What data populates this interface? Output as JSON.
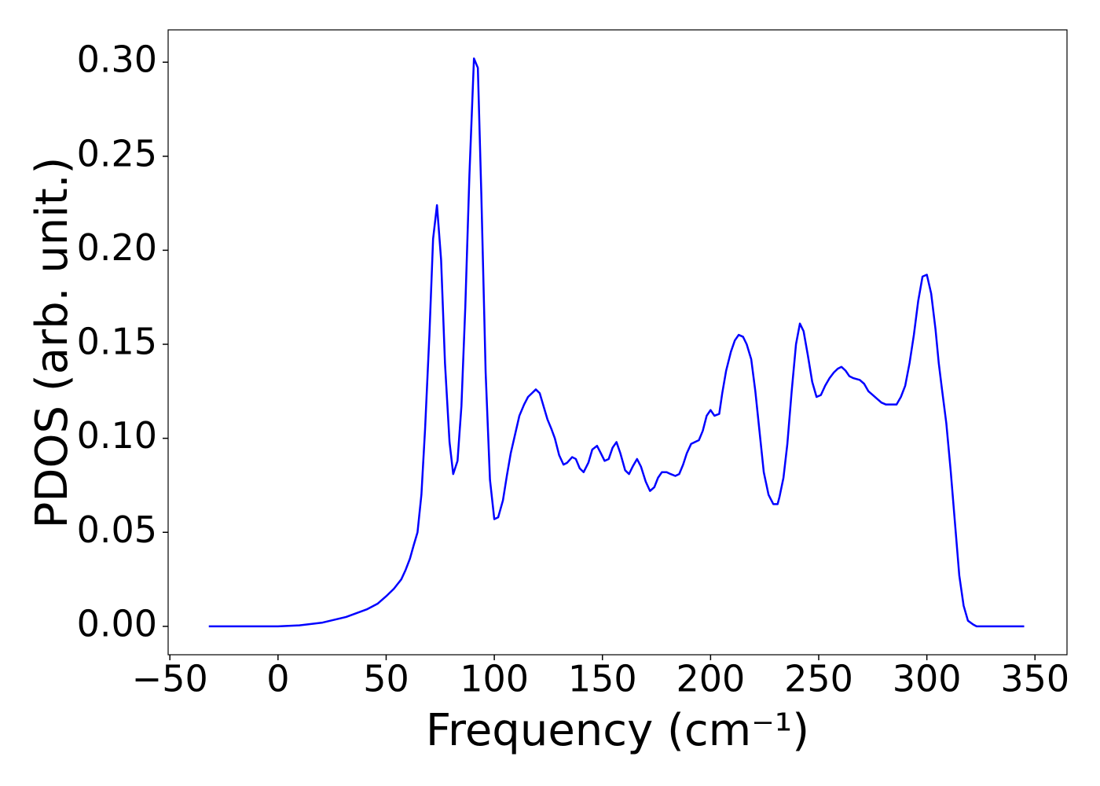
{
  "chart_data": {
    "type": "line",
    "xlabel": "Frequency (cm⁻¹)",
    "ylabel": "PDOS (arb. unit.)",
    "xlim": [
      -50.8,
      364.8
    ],
    "ylim": [
      -0.0151,
      0.3172
    ],
    "xticks": [
      {
        "value": -50,
        "label": "−50"
      },
      0,
      50,
      100,
      150,
      200,
      250,
      300,
      350
    ],
    "yticks": [
      {
        "value": 0,
        "label": "0.00"
      },
      {
        "value": 0.05,
        "label": "0.05"
      },
      {
        "value": 0.1,
        "label": "0.10"
      },
      {
        "value": 0.15,
        "label": "0.15"
      },
      {
        "value": 0.2,
        "label": "0.20"
      },
      {
        "value": 0.25,
        "label": "0.25"
      },
      {
        "value": 0.3,
        "label": "0.30"
      }
    ],
    "grid": false,
    "x": [
      -32,
      0,
      9.8,
      20.6,
      31.5,
      41,
      46,
      50,
      53.6,
      57,
      59,
      61,
      62.7,
      64.5,
      66.3,
      68,
      70,
      71.7,
      73.5,
      75.4,
      77.2,
      79.3,
      81,
      83,
      84.8,
      86.6,
      88.5,
      90.6,
      92.4,
      94,
      96,
      98,
      100,
      101.8,
      104,
      105.8,
      107.6,
      109.8,
      111.6,
      113.8,
      115.6,
      117.4,
      119.2,
      121,
      122.8,
      124.6,
      126.4,
      128,
      130,
      132,
      133.7,
      136,
      137.7,
      139.5,
      141.3,
      143.5,
      145.3,
      147.5,
      149.3,
      151,
      152.9,
      154.7,
      156.5,
      158.3,
      160.5,
      162.3,
      164,
      166,
      167.8,
      170,
      172,
      174,
      175.7,
      177.5,
      179.7,
      181.5,
      183.7,
      185.5,
      187.3,
      189,
      191,
      192.8,
      194.6,
      196.4,
      198.2,
      200,
      201.8,
      204,
      205.4,
      207.2,
      209.4,
      211.2,
      213,
      215,
      216.7,
      218.8,
      220.7,
      222.6,
      224.6,
      226.8,
      229,
      231,
      231.9,
      233.7,
      235.5,
      237.5,
      239.5,
      241.3,
      243,
      245,
      247,
      249,
      251,
      253,
      255,
      257,
      258.8,
      260.5,
      262.4,
      264.2,
      266,
      269,
      271,
      273,
      275,
      277,
      279,
      281,
      284,
      286,
      288,
      290,
      292,
      294,
      296,
      298,
      300,
      302,
      304,
      305.5,
      307,
      309,
      311,
      313,
      315,
      317,
      319,
      321.4,
      323,
      345
    ],
    "series": [
      {
        "name": "PDOS",
        "color": "#0000ff",
        "values": [
          0,
          0,
          0.0005,
          0.002,
          0.005,
          0.009,
          0.012,
          0.016,
          0.02,
          0.025,
          0.03,
          0.036,
          0.043,
          0.05,
          0.07,
          0.105,
          0.155,
          0.206,
          0.224,
          0.195,
          0.14,
          0.098,
          0.081,
          0.088,
          0.117,
          0.17,
          0.24,
          0.302,
          0.297,
          0.23,
          0.135,
          0.078,
          0.057,
          0.058,
          0.067,
          0.08,
          0.092,
          0.103,
          0.112,
          0.118,
          0.122,
          0.124,
          0.126,
          0.124,
          0.117,
          0.11,
          0.105,
          0.1,
          0.091,
          0.086,
          0.087,
          0.09,
          0.089,
          0.084,
          0.082,
          0.087,
          0.094,
          0.096,
          0.092,
          0.088,
          0.089,
          0.095,
          0.098,
          0.092,
          0.083,
          0.081,
          0.085,
          0.089,
          0.085,
          0.077,
          0.072,
          0.074,
          0.079,
          0.082,
          0.082,
          0.081,
          0.08,
          0.081,
          0.086,
          0.092,
          0.097,
          0.098,
          0.099,
          0.104,
          0.112,
          0.115,
          0.112,
          0.113,
          0.124,
          0.136,
          0.146,
          0.152,
          0.155,
          0.154,
          0.15,
          0.142,
          0.125,
          0.104,
          0.082,
          0.07,
          0.065,
          0.065,
          0.069,
          0.079,
          0.097,
          0.125,
          0.15,
          0.161,
          0.157,
          0.144,
          0.13,
          0.122,
          0.123,
          0.128,
          0.132,
          0.135,
          0.137,
          0.138,
          0.136,
          0.133,
          0.132,
          0.131,
          0.129,
          0.125,
          0.123,
          0.121,
          0.119,
          0.118,
          0.118,
          0.118,
          0.122,
          0.128,
          0.14,
          0.155,
          0.173,
          0.186,
          0.187,
          0.177,
          0.158,
          0.14,
          0.126,
          0.108,
          0.083,
          0.055,
          0.027,
          0.011,
          0.003,
          0.001,
          0,
          0
        ]
      }
    ]
  }
}
